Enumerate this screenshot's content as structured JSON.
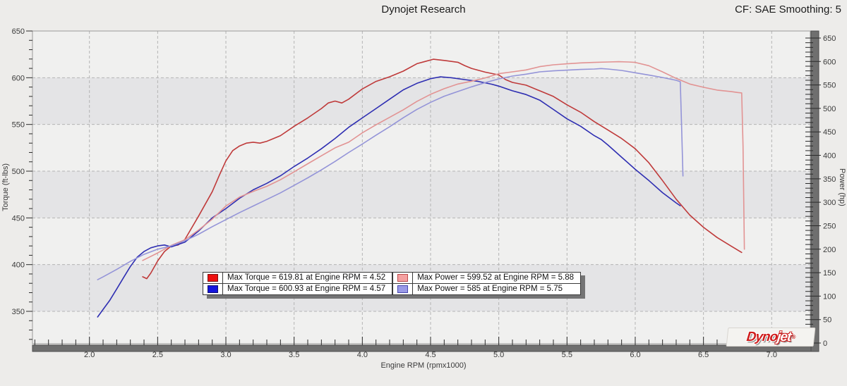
{
  "header": {
    "title": "Dynojet Research",
    "correction_label": "CF: SAE Smoothing: 5"
  },
  "legend": {
    "entries": [
      {
        "label": "Max Torque = 619.81 at Engine RPM = 4.52",
        "chip": "#ee1010",
        "border": "#7a1212"
      },
      {
        "label": "Max Torque = 600.93 at Engine RPM = 4.57",
        "chip": "#1414dd",
        "border": "#101070"
      },
      {
        "label": "Max Power = 599.52 at Engine RPM = 5.88",
        "chip": "#f4a0a0",
        "border": "#bb4a4a"
      },
      {
        "label": "Max Power = 585 at Engine RPM = 5.75",
        "chip": "#9a9ae6",
        "border": "#4646ae"
      }
    ]
  },
  "logo": {
    "text_primary": "Dyno",
    "text_secondary": "jet",
    "mark": "®"
  },
  "chart_data": {
    "type": "line",
    "title": "Dynojet Research",
    "x_axis": {
      "title": "Engine RPM (rpmx1000)",
      "tick_start": 2.0,
      "tick_end": 7.0,
      "major_step": 0.5,
      "minor_step": 0.1,
      "tick_labels": [
        "2.0",
        "2.5",
        "3.0",
        "3.5",
        "4.0",
        "4.5",
        "5.0",
        "5.5",
        "6.0",
        "6.5",
        "7.0"
      ],
      "grid": true
    },
    "y_left": {
      "title": "Torque (ft-lbs)",
      "tick_start": 350,
      "tick_end": 650,
      "major_step": 50,
      "minor_step": 10,
      "tick_labels": [
        650,
        600,
        550,
        500,
        450,
        400,
        350
      ],
      "grid": true
    },
    "y_right": {
      "title": "Power (hp)",
      "tick_start": 0,
      "tick_end": 650,
      "major_step": 50,
      "minor_step": 10,
      "tick_labels": [
        650,
        600,
        550,
        500,
        450,
        400,
        350,
        300,
        250,
        200,
        150,
        100,
        50,
        0
      ],
      "grid": false
    },
    "series": [
      {
        "name": "torque-run-1",
        "axis": "left",
        "color": "#bf3a3a",
        "max_value": 619.81,
        "max_rpm": 4.52,
        "points": [
          [
            2.39,
            387
          ],
          [
            2.42,
            385
          ],
          [
            2.45,
            391
          ],
          [
            2.5,
            404
          ],
          [
            2.55,
            414
          ],
          [
            2.6,
            420
          ],
          [
            2.65,
            421
          ],
          [
            2.7,
            427
          ],
          [
            2.8,
            452
          ],
          [
            2.9,
            478
          ],
          [
            2.95,
            495
          ],
          [
            3.0,
            511
          ],
          [
            3.05,
            522
          ],
          [
            3.1,
            527
          ],
          [
            3.15,
            530
          ],
          [
            3.2,
            531
          ],
          [
            3.25,
            530
          ],
          [
            3.3,
            532
          ],
          [
            3.4,
            538
          ],
          [
            3.5,
            548
          ],
          [
            3.6,
            557
          ],
          [
            3.7,
            567
          ],
          [
            3.75,
            573
          ],
          [
            3.8,
            575
          ],
          [
            3.85,
            573
          ],
          [
            3.9,
            577
          ],
          [
            4.0,
            588
          ],
          [
            4.1,
            596
          ],
          [
            4.2,
            601
          ],
          [
            4.3,
            607
          ],
          [
            4.4,
            615
          ],
          [
            4.45,
            617
          ],
          [
            4.52,
            619.8
          ],
          [
            4.6,
            618.5
          ],
          [
            4.7,
            616.5
          ],
          [
            4.75,
            613
          ],
          [
            4.8,
            610
          ],
          [
            4.9,
            606
          ],
          [
            5.0,
            603
          ],
          [
            5.05,
            598
          ],
          [
            5.1,
            595
          ],
          [
            5.2,
            592
          ],
          [
            5.3,
            586
          ],
          [
            5.4,
            580
          ],
          [
            5.5,
            571
          ],
          [
            5.6,
            563
          ],
          [
            5.7,
            553
          ],
          [
            5.8,
            544
          ],
          [
            5.9,
            535
          ],
          [
            6.0,
            524
          ],
          [
            6.1,
            509
          ],
          [
            6.2,
            490
          ],
          [
            6.3,
            470
          ],
          [
            6.4,
            453
          ],
          [
            6.5,
            440
          ],
          [
            6.6,
            429
          ],
          [
            6.7,
            420
          ],
          [
            6.78,
            413
          ]
        ]
      },
      {
        "name": "torque-run-2",
        "axis": "left",
        "color": "#2e2eb2",
        "max_value": 600.93,
        "max_rpm": 4.57,
        "points": [
          [
            2.06,
            344
          ],
          [
            2.1,
            352
          ],
          [
            2.15,
            362
          ],
          [
            2.2,
            374
          ],
          [
            2.25,
            386
          ],
          [
            2.3,
            398
          ],
          [
            2.35,
            408
          ],
          [
            2.4,
            414
          ],
          [
            2.45,
            418
          ],
          [
            2.5,
            420
          ],
          [
            2.55,
            421
          ],
          [
            2.6,
            419
          ],
          [
            2.7,
            424
          ],
          [
            2.8,
            436
          ],
          [
            2.9,
            450
          ],
          [
            3.0,
            460
          ],
          [
            3.1,
            471
          ],
          [
            3.2,
            480
          ],
          [
            3.3,
            487
          ],
          [
            3.4,
            495
          ],
          [
            3.5,
            505
          ],
          [
            3.6,
            514
          ],
          [
            3.7,
            524
          ],
          [
            3.8,
            535
          ],
          [
            3.9,
            547
          ],
          [
            4.0,
            557
          ],
          [
            4.1,
            567
          ],
          [
            4.2,
            577
          ],
          [
            4.3,
            587
          ],
          [
            4.4,
            594
          ],
          [
            4.5,
            599
          ],
          [
            4.57,
            600.9
          ],
          [
            4.65,
            600
          ],
          [
            4.75,
            598
          ],
          [
            4.85,
            596
          ],
          [
            4.95,
            593
          ],
          [
            5.0,
            591
          ],
          [
            5.1,
            586
          ],
          [
            5.2,
            582
          ],
          [
            5.3,
            576
          ],
          [
            5.4,
            566
          ],
          [
            5.5,
            556
          ],
          [
            5.6,
            548
          ],
          [
            5.7,
            538
          ],
          [
            5.75,
            534
          ],
          [
            5.8,
            528
          ],
          [
            5.9,
            515
          ],
          [
            6.0,
            502
          ],
          [
            6.1,
            490
          ],
          [
            6.2,
            477
          ],
          [
            6.3,
            466
          ],
          [
            6.33,
            463
          ]
        ]
      },
      {
        "name": "power-run-1",
        "axis": "right",
        "color": "#e29393",
        "max_value": 599.52,
        "max_rpm": 5.88,
        "points": [
          [
            2.39,
            176
          ],
          [
            2.5,
            192
          ],
          [
            2.6,
            208
          ],
          [
            2.7,
            220
          ],
          [
            2.8,
            241
          ],
          [
            2.9,
            264
          ],
          [
            3.0,
            292
          ],
          [
            3.1,
            311
          ],
          [
            3.2,
            323
          ],
          [
            3.3,
            334
          ],
          [
            3.4,
            348
          ],
          [
            3.5,
            365
          ],
          [
            3.6,
            382
          ],
          [
            3.7,
            399
          ],
          [
            3.8,
            416
          ],
          [
            3.9,
            428
          ],
          [
            4.0,
            448
          ],
          [
            4.1,
            465
          ],
          [
            4.2,
            481
          ],
          [
            4.3,
            497
          ],
          [
            4.4,
            515
          ],
          [
            4.5,
            530
          ],
          [
            4.6,
            542
          ],
          [
            4.7,
            552
          ],
          [
            4.8,
            558
          ],
          [
            4.9,
            565
          ],
          [
            5.0,
            574
          ],
          [
            5.1,
            578
          ],
          [
            5.2,
            582
          ],
          [
            5.3,
            589
          ],
          [
            5.4,
            593
          ],
          [
            5.5,
            595
          ],
          [
            5.6,
            597
          ],
          [
            5.7,
            598
          ],
          [
            5.8,
            599
          ],
          [
            5.88,
            599.5
          ],
          [
            5.95,
            599
          ],
          [
            6.0,
            598
          ],
          [
            6.1,
            591
          ],
          [
            6.2,
            578
          ],
          [
            6.3,
            564
          ],
          [
            6.4,
            552
          ],
          [
            6.5,
            545
          ],
          [
            6.6,
            539
          ],
          [
            6.7,
            536
          ],
          [
            6.75,
            534
          ],
          [
            6.78,
            533
          ],
          [
            6.79,
            420
          ],
          [
            6.8,
            200
          ]
        ]
      },
      {
        "name": "power-run-2",
        "axis": "right",
        "color": "#9494d8",
        "max_value": 585,
        "max_rpm": 5.75,
        "points": [
          [
            2.06,
            135
          ],
          [
            2.1,
            141
          ],
          [
            2.2,
            157
          ],
          [
            2.3,
            174
          ],
          [
            2.4,
            189
          ],
          [
            2.5,
            200
          ],
          [
            2.6,
            207
          ],
          [
            2.7,
            218
          ],
          [
            2.8,
            232
          ],
          [
            2.9,
            248
          ],
          [
            3.0,
            263
          ],
          [
            3.1,
            278
          ],
          [
            3.2,
            292
          ],
          [
            3.3,
            306
          ],
          [
            3.4,
            320
          ],
          [
            3.5,
            336
          ],
          [
            3.6,
            352
          ],
          [
            3.7,
            369
          ],
          [
            3.8,
            387
          ],
          [
            3.9,
            406
          ],
          [
            4.0,
            424
          ],
          [
            4.1,
            443
          ],
          [
            4.2,
            461
          ],
          [
            4.3,
            480
          ],
          [
            4.4,
            498
          ],
          [
            4.5,
            513
          ],
          [
            4.6,
            526
          ],
          [
            4.7,
            536
          ],
          [
            4.8,
            546
          ],
          [
            4.9,
            555
          ],
          [
            5.0,
            563
          ],
          [
            5.1,
            569
          ],
          [
            5.2,
            573
          ],
          [
            5.3,
            578
          ],
          [
            5.4,
            580
          ],
          [
            5.5,
            581.5
          ],
          [
            5.6,
            583
          ],
          [
            5.7,
            584
          ],
          [
            5.75,
            585
          ],
          [
            5.8,
            584
          ],
          [
            5.9,
            581
          ],
          [
            6.0,
            576
          ],
          [
            6.1,
            571
          ],
          [
            6.2,
            566
          ],
          [
            6.3,
            560
          ],
          [
            6.33,
            557
          ],
          [
            6.34,
            460
          ],
          [
            6.35,
            356
          ]
        ]
      }
    ]
  }
}
